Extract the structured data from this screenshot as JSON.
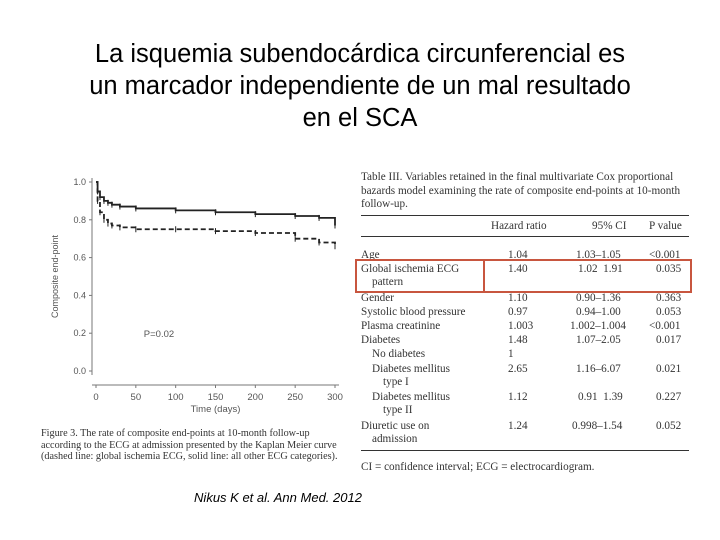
{
  "title": {
    "line1": "La isquemia subendocárdica circunferencial es",
    "line2": "un marcador independiente de un mal resultado",
    "line3": "en el SCA"
  },
  "figure": {
    "ylabel": "Composite end-point",
    "xlabel": "Time (days)",
    "pvalue": "P=0.02",
    "caption_label": "Figure 3.",
    "caption": "The rate of composite end-points at 10-month follow-up according to the ECG at admission presented by the Kaplan Meier curve (dashed line: global ischemia ECG, solid line: all other ECG categories)."
  },
  "chart_data": {
    "type": "line",
    "xlabel": "Time (days)",
    "ylabel": "Composite end-point",
    "xlim": [
      0,
      300
    ],
    "ylim": [
      0.0,
      1.0
    ],
    "xticks": [
      "0",
      "50",
      "100",
      "150",
      "200",
      "250",
      "300"
    ],
    "yticks": [
      "0.0",
      "0.2",
      "0.4",
      "0.6",
      "0.8",
      "1.0"
    ],
    "series": [
      {
        "style": "solid",
        "x": [
          0,
          2,
          5,
          10,
          15,
          20,
          30,
          50,
          100,
          150,
          200,
          250,
          280,
          300
        ],
        "y": [
          1.0,
          0.95,
          0.92,
          0.9,
          0.89,
          0.88,
          0.87,
          0.86,
          0.85,
          0.84,
          0.83,
          0.82,
          0.81,
          0.77
        ]
      },
      {
        "style": "dashed",
        "x": [
          0,
          2,
          5,
          10,
          15,
          20,
          30,
          50,
          100,
          150,
          200,
          250,
          280,
          300
        ],
        "y": [
          1.0,
          0.9,
          0.84,
          0.8,
          0.78,
          0.77,
          0.76,
          0.75,
          0.75,
          0.74,
          0.73,
          0.7,
          0.68,
          0.66
        ]
      }
    ],
    "annotations": [
      "P=0.02"
    ]
  },
  "table": {
    "title_label": "Table III.",
    "title": "Variables retained in the final multivariate Cox proportional bazards model examining the rate of composite end-points at 10-month follow-up.",
    "headers": [
      "",
      "Hazard ratio",
      "95% CI",
      "P value"
    ],
    "rows": [
      {
        "variable": "Age",
        "hr": "1.04",
        "ci": "1.03–1.05",
        "p": "<0.001"
      },
      {
        "variable": "Global ischemia ECG",
        "variable2": "pattern",
        "hr": "1.40",
        "ci": "1.02  1.91",
        "p": "0.035"
      },
      {
        "variable": "Gender",
        "hr": "1.10",
        "ci": "0.90–1.36",
        "p": "0.363"
      },
      {
        "variable": "Systolic blood pressure",
        "hr": "0.97",
        "ci": "0.94–1.00",
        "p": "0.053"
      },
      {
        "variable": "Plasma creatinine",
        "hr": "1.003",
        "ci": "1.002–1.004",
        "p": "<0.001"
      },
      {
        "variable": "Diabetes",
        "hr": "1.48",
        "ci": "1.07–2.05",
        "p": "0.017"
      },
      {
        "variable": "No diabetes",
        "hr": "1",
        "ci": "",
        "p": ""
      },
      {
        "variable": "Diabetes mellitus",
        "variable2": "type I",
        "hr": "2.65",
        "ci": "1.16–6.07",
        "p": "0.021"
      },
      {
        "variable": "Diabetes mellitus",
        "variable2": "type II",
        "hr": "1.12",
        "ci": "0.91  1.39",
        "p": "0.227"
      },
      {
        "variable": "Diuretic use on",
        "variable2": "admission",
        "hr": "1.24",
        "ci": "0.998–1.54",
        "p": "0.052"
      }
    ],
    "footnote": "CI = confidence interval; ECG = electrocardiogram."
  },
  "citation": "Nikus K et al. Ann Med. 2012",
  "colors": {
    "highlight": "#c8563f",
    "text": "#333333"
  }
}
